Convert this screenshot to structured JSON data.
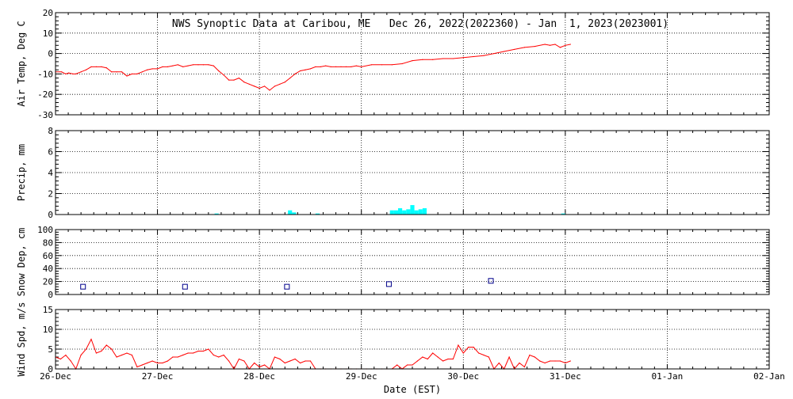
{
  "chart_data": {
    "type": "line",
    "title": "NWS Synoptic Data at Caribou, ME   Dec 26, 2022(2022360) - Jan  1, 2023(2023001)",
    "xlabel": "Date (EST)",
    "x_ticks": [
      "26-Dec",
      "27-Dec",
      "28-Dec",
      "29-Dec",
      "30-Dec",
      "31-Dec",
      "01-Jan",
      "02-Jan"
    ],
    "x_range_days": [
      0,
      7
    ],
    "grid": true,
    "panels": [
      {
        "id": "air-temp",
        "type": "line",
        "ylabel": "Air Temp, Deg C",
        "ylim": [
          -30,
          20
        ],
        "yticks": [
          -30,
          -20,
          -10,
          0,
          10,
          20
        ],
        "color": "#ff0000",
        "series": [
          {
            "x": [
              0.0,
              0.06,
              0.1,
              0.13,
              0.17,
              0.2,
              0.25,
              0.3,
              0.35,
              0.4,
              0.45,
              0.5,
              0.55,
              0.6,
              0.65,
              0.7,
              0.75,
              0.8,
              0.85,
              0.9,
              0.95,
              1.0,
              1.05,
              1.1,
              1.15,
              1.2,
              1.25,
              1.3,
              1.35,
              1.4,
              1.45,
              1.5,
              1.55,
              1.6,
              1.65,
              1.7,
              1.75,
              1.8,
              1.85,
              1.9,
              1.95,
              2.0,
              2.05,
              2.1,
              2.15,
              2.2,
              2.25,
              2.3,
              2.35,
              2.4,
              2.45,
              2.5,
              2.55,
              2.6,
              2.65,
              2.7,
              2.75,
              2.8,
              2.85,
              2.9,
              2.95,
              3.0,
              3.1,
              3.2,
              3.3,
              3.4,
              3.5,
              3.6,
              3.7,
              3.8,
              3.9,
              4.0,
              4.1,
              4.2,
              4.3,
              4.4,
              4.5,
              4.6,
              4.7,
              4.8,
              4.85,
              4.9,
              4.95,
              5.0,
              5.05
            ],
            "values": [
              -9,
              -9,
              -10,
              -9.5,
              -10,
              -10,
              -9,
              -8,
              -6.5,
              -6.5,
              -6.5,
              -7,
              -9,
              -9,
              -9,
              -11,
              -10,
              -10,
              -9,
              -8,
              -7.5,
              -7.5,
              -6.5,
              -6.5,
              -6,
              -5.5,
              -6.5,
              -6,
              -5.5,
              -5.5,
              -5.5,
              -5.5,
              -6,
              -8.5,
              -10.5,
              -13,
              -13,
              -12,
              -14,
              -15,
              -16,
              -17,
              -16,
              -18,
              -16,
              -15,
              -14,
              -12,
              -10,
              -8.5,
              -8,
              -7.5,
              -6.5,
              -6.5,
              -6,
              -6.5,
              -6.5,
              -6.5,
              -6.5,
              -6.5,
              -6,
              -6.5,
              -5.5,
              -5.5,
              -5.5,
              -5,
              -3.5,
              -3,
              -3,
              -2.5,
              -2.5,
              -2,
              -1.5,
              -1,
              0,
              1,
              2,
              3,
              3.5,
              4.5,
              4,
              4.5,
              3,
              4,
              4.5
            ]
          }
        ]
      },
      {
        "id": "precip",
        "type": "bar",
        "ylabel": "Precip, mm",
        "ylim": [
          0,
          8
        ],
        "yticks": [
          0,
          2,
          4,
          6,
          8
        ],
        "color": "#00ffff",
        "bar_width_days": 0.04,
        "series": [
          {
            "x": [
              1.58,
              2.3,
              2.34,
              2.57,
              3.3,
              3.34,
              3.38,
              3.42,
              3.46,
              3.5,
              3.54,
              3.58,
              3.62,
              4.98
            ],
            "values": [
              0.1,
              0.4,
              0.2,
              0.1,
              0.4,
              0.4,
              0.6,
              0.4,
              0.5,
              0.9,
              0.4,
              0.5,
              0.6,
              0.1
            ]
          }
        ]
      },
      {
        "id": "snow-depth",
        "type": "scatter",
        "ylabel": "Snow Dep, cm",
        "ylim": [
          0,
          100
        ],
        "yticks": [
          0,
          20,
          40,
          60,
          80,
          100
        ],
        "color": "#00008b",
        "series": [
          {
            "x": [
              0.27,
              1.27,
              2.27,
              3.27,
              4.27
            ],
            "values": [
              12,
              12,
              12,
              16,
              21
            ]
          }
        ]
      },
      {
        "id": "wind-speed",
        "type": "line",
        "ylabel": "Wind Spd, m/s",
        "ylim": [
          0,
          15
        ],
        "yticks": [
          0,
          5,
          10,
          15
        ],
        "color": "#ff0000",
        "series": [
          {
            "x": [
              0.0,
              0.05,
              0.1,
              0.15,
              0.2,
              0.25,
              0.3,
              0.35,
              0.4,
              0.45,
              0.5,
              0.55,
              0.6,
              0.65,
              0.7,
              0.75,
              0.8,
              0.85,
              0.9,
              0.95,
              1.0,
              1.05,
              1.1,
              1.15,
              1.2,
              1.25,
              1.3,
              1.35,
              1.4,
              1.45,
              1.5,
              1.55,
              1.6,
              1.65,
              1.7,
              1.75,
              1.8,
              1.85,
              1.9,
              1.95,
              2.0,
              2.05,
              2.1,
              2.15,
              2.2,
              2.25,
              2.3,
              2.35,
              2.4,
              2.45,
              2.5,
              2.55,
              2.6,
              2.65,
              2.7,
              2.75,
              2.8,
              2.85,
              2.9,
              2.95,
              3.0,
              3.05,
              3.1,
              3.15,
              3.2,
              3.25,
              3.3,
              3.35,
              3.4,
              3.45,
              3.5,
              3.55,
              3.6,
              3.65,
              3.7,
              3.75,
              3.8,
              3.85,
              3.9,
              3.95,
              4.0,
              4.05,
              4.1,
              4.15,
              4.2,
              4.25,
              4.3,
              4.35,
              4.4,
              4.45,
              4.5,
              4.55,
              4.6,
              4.65,
              4.7,
              4.75,
              4.8,
              4.85,
              4.9,
              4.95,
              5.0,
              5.05
            ],
            "values": [
              3,
              2.5,
              3.5,
              2,
              0,
              3.5,
              5,
              7.5,
              4,
              4.5,
              6,
              5,
              3,
              3.5,
              4,
              3.5,
              0.5,
              1,
              1.5,
              2,
              1.5,
              1.5,
              2,
              3,
              3,
              3.5,
              4,
              4,
              4.5,
              4.5,
              5,
              3.5,
              3,
              3.5,
              2,
              0,
              2.5,
              2,
              0,
              1.5,
              0.5,
              1,
              0,
              3,
              2.5,
              1.5,
              2,
              2.5,
              1.5,
              2,
              2,
              0,
              0,
              0,
              0,
              0,
              0,
              0,
              0,
              0,
              0,
              0,
              0,
              0,
              0,
              0,
              0,
              1,
              0,
              1,
              1,
              2,
              3,
              2.5,
              4,
              3,
              2,
              2.5,
              2.5,
              6,
              4,
              5.5,
              5.5,
              4,
              3.5,
              3,
              0,
              1.5,
              0,
              3,
              0,
              1.5,
              0.5,
              3.5,
              3,
              2,
              1.5,
              2,
              2,
              2,
              1.5,
              2
            ]
          }
        ]
      }
    ]
  }
}
